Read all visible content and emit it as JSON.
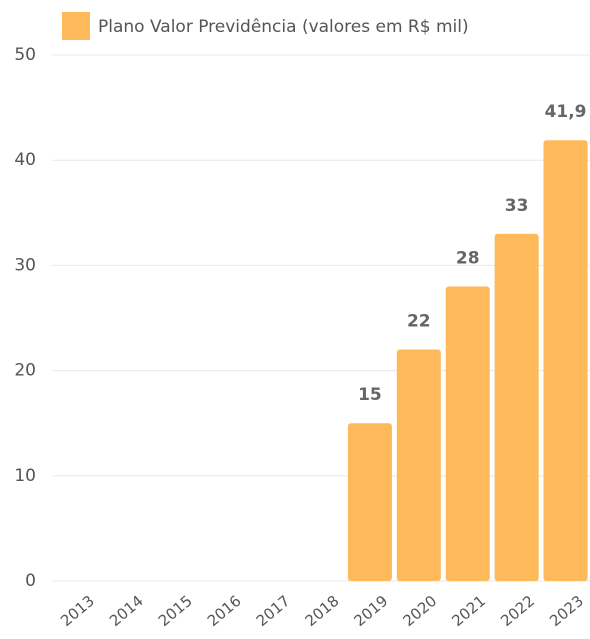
{
  "chart_data": {
    "type": "bar",
    "legend": "Plano Valor Previdência (valores em R$ mil)",
    "categories": [
      "2013",
      "2014",
      "2015",
      "2016",
      "2017",
      "2018",
      "2019",
      "2020",
      "2021",
      "2022",
      "2023"
    ],
    "values": [
      0,
      0,
      0,
      0,
      0,
      0,
      15,
      22,
      28,
      33,
      41.9
    ],
    "value_labels": [
      null,
      null,
      null,
      null,
      null,
      null,
      "15",
      "22",
      "28",
      "33",
      "41,9"
    ],
    "color": "#fdb95a",
    "ylim": [
      0,
      50
    ],
    "yticks": [
      0,
      10,
      20,
      30,
      40,
      50
    ],
    "grid": true
  }
}
